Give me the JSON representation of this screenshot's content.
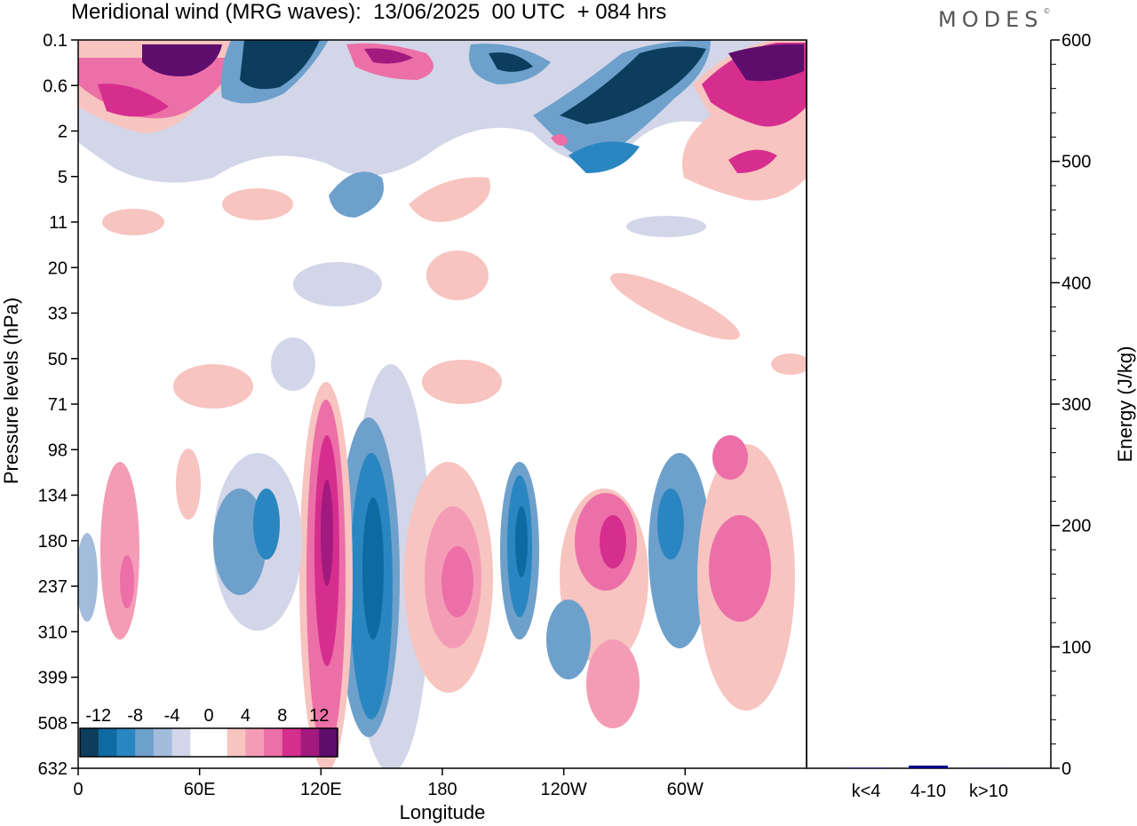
{
  "header": {
    "title": "Meridional wind (MRG waves):  13/06/2025  00 UTC  + 084 hrs",
    "brand": "MODES",
    "brand_mark": "©"
  },
  "chart_data": [
    {
      "type": "heatmap",
      "xlabel": "Longitude",
      "ylabel": "Pressure levels (hPa)",
      "x_ticks": [
        "0",
        "60E",
        "120E",
        "180",
        "120W",
        "60W"
      ],
      "y_ticks": [
        "0.1",
        "0.6",
        "2",
        "5",
        "11",
        "20",
        "33",
        "50",
        "71",
        "98",
        "134",
        "180",
        "237",
        "310",
        "399",
        "508",
        "632"
      ],
      "colorbar": {
        "labels": [
          "-12",
          "-8",
          "-4",
          "0",
          "4",
          "8",
          "12"
        ],
        "colors": [
          "#0c3d5c",
          "#0e6aa0",
          "#2a86c0",
          "#6ea0cc",
          "#a3bcdc",
          "#d2d6e8",
          "#ffffff",
          "#ffffff",
          "#f7c4c0",
          "#f49cb6",
          "#ec6fa8",
          "#d62e8e",
          "#a21a7e",
          "#5e0d6c"
        ]
      },
      "features": [
        {
          "lon": 128,
          "level": "237",
          "value": 12,
          "shape": "vertical",
          "sign": "positive"
        },
        {
          "lon": 145,
          "level": "310",
          "value": -12,
          "shape": "vertical",
          "sign": "negative"
        },
        {
          "lon": 85,
          "level": "180",
          "value": -8,
          "shape": "vertical",
          "sign": "negative"
        },
        {
          "lon": 212,
          "level": "180",
          "value": -10,
          "shape": "vertical",
          "sign": "negative"
        },
        {
          "lon": 232,
          "level": "180",
          "value": 10,
          "shape": "blob",
          "sign": "positive"
        },
        {
          "lon": 193,
          "level": "237",
          "value": 8,
          "shape": "vertical",
          "sign": "positive"
        },
        {
          "lon": 265,
          "level": "180",
          "value": -6,
          "shape": "vertical",
          "sign": "negative"
        },
        {
          "lon": 312,
          "level": "180",
          "value": 8,
          "shape": "blob",
          "sign": "positive"
        },
        {
          "lon": 18,
          "level": "237",
          "value": 6,
          "shape": "vertical",
          "sign": "positive"
        }
      ]
    },
    {
      "type": "bar",
      "ylabel": "Energy (J/kg)",
      "ylim": [
        0,
        600
      ],
      "y_ticks": [
        "0",
        "100",
        "200",
        "300",
        "400",
        "500",
        "600"
      ],
      "categories": [
        "k<4",
        "4-10",
        "k>10"
      ],
      "values": [
        0.4,
        2.2,
        0.2
      ],
      "bar_color": "#00008b"
    }
  ]
}
